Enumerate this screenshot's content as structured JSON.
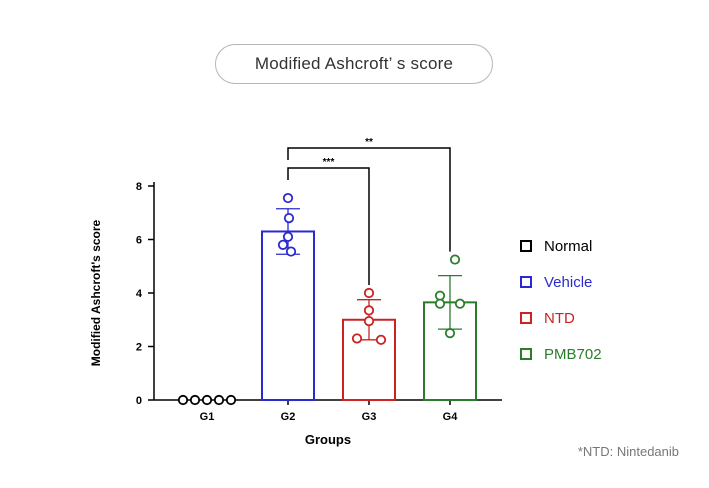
{
  "header": {
    "title": "Modified Ashcroft’ s score"
  },
  "legend": {
    "items": [
      {
        "label": "Normal",
        "color": "#000000"
      },
      {
        "label": "Vehicle",
        "color": "#2a2ad0"
      },
      {
        "label": "NTD",
        "color": "#cc2222"
      },
      {
        "label": "PMB702",
        "color": "#2a7d2a"
      }
    ]
  },
  "footnote": "*NTD: Nintedanib",
  "chart_data": {
    "type": "bar",
    "xlabel": "Groups",
    "ylabel": "Modified Ashcroft's score",
    "ylim": [
      0,
      8
    ],
    "yticks": [
      "0",
      "2",
      "4",
      "6",
      "8"
    ],
    "categories": [
      "G1",
      "G2",
      "G3",
      "G4"
    ],
    "values": [
      0,
      6.3,
      3.0,
      3.65
    ],
    "errors": [
      0,
      0.85,
      0.75,
      1.0
    ],
    "colors": [
      "#000000",
      "#2a2ad0",
      "#cc2222",
      "#2a7d2a"
    ],
    "points": [
      [
        0,
        0,
        0,
        0,
        0
      ],
      [
        7.55,
        6.8,
        6.1,
        5.8,
        5.55
      ],
      [
        4.0,
        3.35,
        2.95,
        2.3,
        2.25
      ],
      [
        5.25,
        3.9,
        3.6,
        3.6,
        2.5
      ]
    ],
    "significance": [
      {
        "from": "G2",
        "to": "G4",
        "label": "**"
      },
      {
        "from": "G2",
        "to": "G3",
        "label": "***"
      }
    ]
  }
}
